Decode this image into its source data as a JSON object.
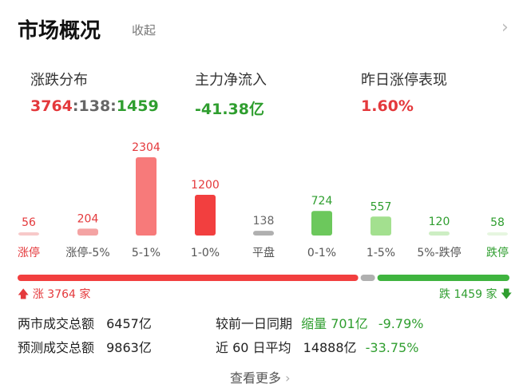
{
  "header": {
    "title": "市场概况",
    "collapse_label": "收起",
    "chevron": "chevron-right-icon"
  },
  "stats": [
    {
      "label": "涨跌分布",
      "value_up": "3764",
      "value_flat": "138",
      "value_down": "1459",
      "sep": ":"
    },
    {
      "label": "主力净流入",
      "value": "-41.38亿"
    },
    {
      "label": "昨日涨停表现",
      "value": "1.60%"
    }
  ],
  "chart_data": {
    "type": "bar",
    "categories": [
      "涨停",
      "涨停-5%",
      "5-1%",
      "1-0%",
      "平盘",
      "0-1%",
      "1-5%",
      "5%-跌停",
      "跌停"
    ],
    "values": [
      56,
      204,
      2304,
      1200,
      138,
      724,
      557,
      120,
      58
    ],
    "colors": [
      "#f7c9c9",
      "#f4a3a3",
      "#f77a7a",
      "#f23f3f",
      "#b0b0b0",
      "#6cc85c",
      "#a3e08f",
      "#cdeec3",
      "#e6f6e0"
    ],
    "label_colors": [
      "#e4393c",
      "#e4393c",
      "#e4393c",
      "#e4393c",
      "#666666",
      "#2f9e2f",
      "#2f9e2f",
      "#2f9e2f",
      "#2f9e2f"
    ],
    "category_colors": [
      "#e4393c",
      "#555555",
      "#555555",
      "#555555",
      "#555555",
      "#555555",
      "#555555",
      "#555555",
      "#2f9e2f"
    ]
  },
  "ratio_bar": {
    "up": 3764,
    "flat": 138,
    "down": 1459,
    "up_color": "#f23f3f",
    "flat_color": "#b0b0b0",
    "down_color": "#3fb43f"
  },
  "ratio_labels": {
    "up": "涨 3764 家",
    "down": "跌 1459 家"
  },
  "turnover": {
    "total_label": "两市成交总额",
    "total_value": "6457亿",
    "forecast_label": "预测成交总额",
    "forecast_value": "9863亿",
    "prev_label": "较前一日同期",
    "prev_change": "缩量 701亿",
    "prev_pct": "-9.79%",
    "avg_label": "近 60 日平均",
    "avg_value": "14888亿",
    "avg_pct": "-33.75%"
  },
  "more_label": "查看更多"
}
